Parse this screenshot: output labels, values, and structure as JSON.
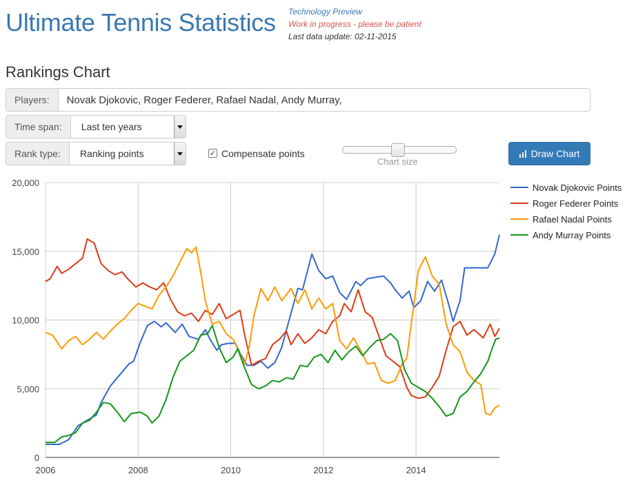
{
  "header": {
    "brand": "Ultimate Tennis Statistics",
    "tech_preview": "Technology Preview",
    "work_in_progress": "Work in progress - please be patient",
    "last_update": "Last data update: 02-11-2015"
  },
  "page_title": "Rankings Chart",
  "form": {
    "players_label": "Players:",
    "players_value": "Novak Djokovic, Roger Federer, Rafael Nadal, Andy Murray,",
    "timespan_label": "Time span:",
    "timespan_value": "Last ten years",
    "ranktype_label": "Rank type:",
    "ranktype_value": "Ranking points",
    "compensate_label": "Compensate points",
    "compensate_checked": true,
    "slider_label": "Chart size",
    "draw_button": "Draw Chart"
  },
  "chart_data": {
    "type": "line",
    "title": "",
    "xlabel": "",
    "ylabel": "",
    "xlim": [
      2006,
      2015.8
    ],
    "ylim": [
      0,
      20000
    ],
    "x_ticks": [
      2006,
      2008,
      2010,
      2012,
      2014
    ],
    "y_ticks": [
      0,
      5000,
      10000,
      15000,
      20000
    ],
    "x_tick_labels": [
      "2006",
      "2008",
      "2010",
      "2012",
      "2014"
    ],
    "y_tick_labels": [
      "0",
      "5,000",
      "10,000",
      "15,000",
      "20,000"
    ],
    "grid": true,
    "legend_position": "right",
    "series": [
      {
        "name": "Novak Djokovic Points",
        "color": "#3366cc",
        "points": [
          [
            2006,
            950
          ],
          [
            2006.3,
            950
          ],
          [
            2006.5,
            1300
          ],
          [
            2006.7,
            2300
          ],
          [
            2006.9,
            2700
          ],
          [
            2007.1,
            3100
          ],
          [
            2007.2,
            4000
          ],
          [
            2007.4,
            5200
          ],
          [
            2007.6,
            6000
          ],
          [
            2007.8,
            6800
          ],
          [
            2007.9,
            7000
          ],
          [
            2008.05,
            8400
          ],
          [
            2008.2,
            9600
          ],
          [
            2008.35,
            9900
          ],
          [
            2008.5,
            9500
          ],
          [
            2008.6,
            9800
          ],
          [
            2008.8,
            9100
          ],
          [
            2008.95,
            9700
          ],
          [
            2009.1,
            8800
          ],
          [
            2009.3,
            8600
          ],
          [
            2009.45,
            9300
          ],
          [
            2009.55,
            8600
          ],
          [
            2009.7,
            7800
          ],
          [
            2009.8,
            8200
          ],
          [
            2009.95,
            8300
          ],
          [
            2010.1,
            8300
          ],
          [
            2010.2,
            7600
          ],
          [
            2010.35,
            6700
          ],
          [
            2010.5,
            6700
          ],
          [
            2010.65,
            7000
          ],
          [
            2010.8,
            6500
          ],
          [
            2010.95,
            6900
          ],
          [
            2011.1,
            8000
          ],
          [
            2011.3,
            10500
          ],
          [
            2011.45,
            12300
          ],
          [
            2011.55,
            12200
          ],
          [
            2011.75,
            14800
          ],
          [
            2011.9,
            13600
          ],
          [
            2012.05,
            13000
          ],
          [
            2012.2,
            13200
          ],
          [
            2012.35,
            12000
          ],
          [
            2012.5,
            11500
          ],
          [
            2012.7,
            12800
          ],
          [
            2012.8,
            12500
          ],
          [
            2012.95,
            13000
          ],
          [
            2013.1,
            13100
          ],
          [
            2013.3,
            13200
          ],
          [
            2013.45,
            12700
          ],
          [
            2013.55,
            12200
          ],
          [
            2013.7,
            11600
          ],
          [
            2013.85,
            12100
          ],
          [
            2013.95,
            10900
          ],
          [
            2014.1,
            11400
          ],
          [
            2014.25,
            12800
          ],
          [
            2014.4,
            12100
          ],
          [
            2014.55,
            12900
          ],
          [
            2014.7,
            11200
          ],
          [
            2014.8,
            9900
          ],
          [
            2014.95,
            11400
          ],
          [
            2015.05,
            13800
          ],
          [
            2015.3,
            13800
          ],
          [
            2015.55,
            13800
          ],
          [
            2015.7,
            14800
          ],
          [
            2015.8,
            16200
          ]
        ]
      },
      {
        "name": "Roger Federer Points",
        "color": "#dc3912",
        "points": [
          [
            2006,
            12800
          ],
          [
            2006.1,
            13000
          ],
          [
            2006.25,
            13900
          ],
          [
            2006.35,
            13400
          ],
          [
            2006.5,
            13700
          ],
          [
            2006.65,
            14100
          ],
          [
            2006.8,
            14500
          ],
          [
            2006.9,
            15900
          ],
          [
            2007.05,
            15600
          ],
          [
            2007.2,
            14100
          ],
          [
            2007.35,
            13600
          ],
          [
            2007.5,
            13300
          ],
          [
            2007.65,
            13500
          ],
          [
            2007.8,
            12900
          ],
          [
            2007.95,
            12400
          ],
          [
            2008.1,
            12700
          ],
          [
            2008.25,
            12400
          ],
          [
            2008.4,
            12200
          ],
          [
            2008.55,
            12700
          ],
          [
            2008.7,
            11500
          ],
          [
            2008.85,
            10600
          ],
          [
            2009,
            10300
          ],
          [
            2009.15,
            10500
          ],
          [
            2009.3,
            9900
          ],
          [
            2009.45,
            10700
          ],
          [
            2009.6,
            10400
          ],
          [
            2009.75,
            11200
          ],
          [
            2009.9,
            10100
          ],
          [
            2010.05,
            10400
          ],
          [
            2010.2,
            10700
          ],
          [
            2010.3,
            8900
          ],
          [
            2010.45,
            6700
          ],
          [
            2010.6,
            7000
          ],
          [
            2010.75,
            7200
          ],
          [
            2010.9,
            8200
          ],
          [
            2011.05,
            8600
          ],
          [
            2011.2,
            9200
          ],
          [
            2011.3,
            8200
          ],
          [
            2011.45,
            9000
          ],
          [
            2011.6,
            8300
          ],
          [
            2011.75,
            8700
          ],
          [
            2011.9,
            9300
          ],
          [
            2012.05,
            9000
          ],
          [
            2012.2,
            9900
          ],
          [
            2012.35,
            10300
          ],
          [
            2012.45,
            11200
          ],
          [
            2012.6,
            10600
          ],
          [
            2012.75,
            12200
          ],
          [
            2012.9,
            10600
          ],
          [
            2013.05,
            10200
          ],
          [
            2013.2,
            8800
          ],
          [
            2013.35,
            7400
          ],
          [
            2013.5,
            7000
          ],
          [
            2013.65,
            6600
          ],
          [
            2013.8,
            5100
          ],
          [
            2013.9,
            4500
          ],
          [
            2014.05,
            4300
          ],
          [
            2014.2,
            4400
          ],
          [
            2014.35,
            5100
          ],
          [
            2014.5,
            5900
          ],
          [
            2014.65,
            7800
          ],
          [
            2014.8,
            9500
          ],
          [
            2014.95,
            9900
          ],
          [
            2015.1,
            8900
          ],
          [
            2015.25,
            9300
          ],
          [
            2015.45,
            8700
          ],
          [
            2015.6,
            9700
          ],
          [
            2015.7,
            8800
          ],
          [
            2015.8,
            9400
          ]
        ]
      },
      {
        "name": "Rafael Nadal Points",
        "color": "#ff9900",
        "points": [
          [
            2006,
            9100
          ],
          [
            2006.15,
            8900
          ],
          [
            2006.25,
            8400
          ],
          [
            2006.35,
            7900
          ],
          [
            2006.5,
            8500
          ],
          [
            2006.65,
            8800
          ],
          [
            2006.8,
            8200
          ],
          [
            2006.95,
            8600
          ],
          [
            2007.1,
            9100
          ],
          [
            2007.25,
            8600
          ],
          [
            2007.4,
            9200
          ],
          [
            2007.55,
            9700
          ],
          [
            2007.7,
            10100
          ],
          [
            2007.85,
            10700
          ],
          [
            2008,
            11200
          ],
          [
            2008.15,
            11000
          ],
          [
            2008.3,
            10800
          ],
          [
            2008.45,
            11800
          ],
          [
            2008.6,
            12400
          ],
          [
            2008.75,
            13200
          ],
          [
            2008.9,
            14200
          ],
          [
            2009.05,
            15200
          ],
          [
            2009.15,
            14900
          ],
          [
            2009.25,
            15300
          ],
          [
            2009.35,
            13500
          ],
          [
            2009.45,
            11400
          ],
          [
            2009.6,
            9700
          ],
          [
            2009.75,
            9900
          ],
          [
            2009.9,
            9000
          ],
          [
            2010.05,
            8600
          ],
          [
            2010.15,
            7900
          ],
          [
            2010.3,
            6800
          ],
          [
            2010.4,
            8100
          ],
          [
            2010.5,
            10300
          ],
          [
            2010.65,
            12300
          ],
          [
            2010.8,
            11400
          ],
          [
            2010.95,
            12400
          ],
          [
            2011.1,
            11400
          ],
          [
            2011.3,
            12300
          ],
          [
            2011.45,
            11200
          ],
          [
            2011.6,
            12200
          ],
          [
            2011.75,
            10800
          ],
          [
            2011.9,
            11600
          ],
          [
            2012.05,
            10800
          ],
          [
            2012.2,
            11200
          ],
          [
            2012.35,
            8500
          ],
          [
            2012.5,
            7900
          ],
          [
            2012.65,
            8700
          ],
          [
            2012.8,
            7800
          ],
          [
            2012.95,
            6800
          ],
          [
            2013.1,
            6900
          ],
          [
            2013.25,
            5600
          ],
          [
            2013.4,
            5400
          ],
          [
            2013.55,
            5600
          ],
          [
            2013.7,
            6800
          ],
          [
            2013.8,
            7200
          ],
          [
            2013.9,
            9800
          ],
          [
            2014.05,
            13600
          ],
          [
            2014.2,
            14600
          ],
          [
            2014.35,
            13200
          ],
          [
            2014.5,
            12600
          ],
          [
            2014.65,
            9700
          ],
          [
            2014.8,
            8200
          ],
          [
            2014.95,
            7700
          ],
          [
            2015.1,
            6200
          ],
          [
            2015.25,
            5600
          ],
          [
            2015.4,
            5300
          ],
          [
            2015.5,
            3200
          ],
          [
            2015.6,
            3100
          ],
          [
            2015.7,
            3600
          ],
          [
            2015.8,
            3800
          ]
        ]
      },
      {
        "name": "Andy Murray Points",
        "color": "#109618",
        "points": [
          [
            2006,
            1100
          ],
          [
            2006.2,
            1100
          ],
          [
            2006.35,
            1500
          ],
          [
            2006.5,
            1600
          ],
          [
            2006.65,
            1800
          ],
          [
            2006.8,
            2500
          ],
          [
            2006.95,
            2700
          ],
          [
            2007.1,
            3300
          ],
          [
            2007.25,
            4000
          ],
          [
            2007.4,
            3900
          ],
          [
            2007.55,
            3300
          ],
          [
            2007.7,
            2600
          ],
          [
            2007.85,
            3200
          ],
          [
            2008.05,
            3300
          ],
          [
            2008.2,
            3000
          ],
          [
            2008.3,
            2500
          ],
          [
            2008.45,
            3000
          ],
          [
            2008.6,
            4200
          ],
          [
            2008.75,
            5800
          ],
          [
            2008.9,
            7000
          ],
          [
            2009.05,
            7400
          ],
          [
            2009.2,
            7800
          ],
          [
            2009.35,
            8900
          ],
          [
            2009.5,
            9000
          ],
          [
            2009.6,
            9600
          ],
          [
            2009.75,
            8000
          ],
          [
            2009.9,
            6900
          ],
          [
            2010.05,
            7300
          ],
          [
            2010.15,
            7900
          ],
          [
            2010.3,
            6500
          ],
          [
            2010.45,
            5300
          ],
          [
            2010.6,
            5000
          ],
          [
            2010.75,
            5200
          ],
          [
            2010.9,
            5600
          ],
          [
            2011.05,
            5500
          ],
          [
            2011.2,
            5800
          ],
          [
            2011.35,
            5700
          ],
          [
            2011.5,
            6700
          ],
          [
            2011.65,
            6600
          ],
          [
            2011.8,
            7300
          ],
          [
            2011.95,
            7500
          ],
          [
            2012.1,
            6900
          ],
          [
            2012.25,
            7800
          ],
          [
            2012.4,
            7100
          ],
          [
            2012.55,
            7700
          ],
          [
            2012.7,
            8100
          ],
          [
            2012.85,
            7400
          ],
          [
            2013,
            8000
          ],
          [
            2013.15,
            8500
          ],
          [
            2013.3,
            8600
          ],
          [
            2013.45,
            9000
          ],
          [
            2013.6,
            8500
          ],
          [
            2013.75,
            6400
          ],
          [
            2013.9,
            5400
          ],
          [
            2014.05,
            5100
          ],
          [
            2014.2,
            4800
          ],
          [
            2014.35,
            4300
          ],
          [
            2014.5,
            3700
          ],
          [
            2014.65,
            3000
          ],
          [
            2014.8,
            3200
          ],
          [
            2014.95,
            4400
          ],
          [
            2015.1,
            4800
          ],
          [
            2015.25,
            5500
          ],
          [
            2015.4,
            6100
          ],
          [
            2015.55,
            7000
          ],
          [
            2015.65,
            8000
          ],
          [
            2015.72,
            8600
          ],
          [
            2015.8,
            8700
          ]
        ]
      }
    ]
  }
}
